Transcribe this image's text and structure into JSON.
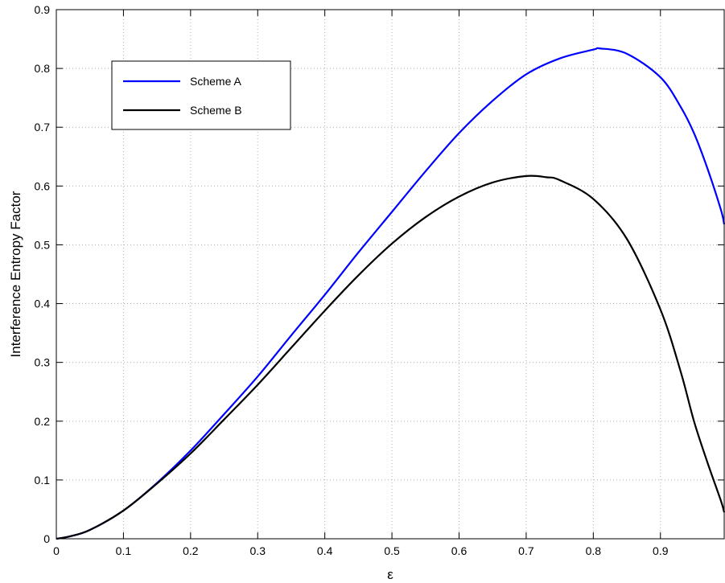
{
  "chart_data": {
    "type": "line",
    "title": "",
    "xlabel": "ε",
    "ylabel": "Interference Entropy Factor",
    "xlim": [
      0,
      0.995
    ],
    "ylim": [
      0,
      0.9
    ],
    "xticks": [
      "0",
      "0.1",
      "0.2",
      "0.3",
      "0.4",
      "0.5",
      "0.6",
      "0.7",
      "0.8",
      "0.9"
    ],
    "yticks": [
      "0",
      "0.1",
      "0.2",
      "0.3",
      "0.4",
      "0.5",
      "0.6",
      "0.7",
      "0.8",
      "0.9"
    ],
    "grid": true,
    "legend_position": "top-left",
    "series": [
      {
        "name": "Scheme A",
        "color": "#0000ff",
        "x": [
          0,
          0.02,
          0.05,
          0.1,
          0.15,
          0.2,
          0.25,
          0.3,
          0.35,
          0.4,
          0.45,
          0.5,
          0.55,
          0.6,
          0.65,
          0.7,
          0.75,
          0.8,
          0.81,
          0.85,
          0.9,
          0.93,
          0.95,
          0.97,
          0.99,
          0.995
        ],
        "y": [
          0,
          0.004,
          0.015,
          0.048,
          0.095,
          0.15,
          0.212,
          0.276,
          0.346,
          0.415,
          0.487,
          0.556,
          0.625,
          0.69,
          0.745,
          0.79,
          0.817,
          0.832,
          0.834,
          0.825,
          0.785,
          0.735,
          0.69,
          0.63,
          0.56,
          0.535
        ]
      },
      {
        "name": "Scheme B",
        "color": "#000000",
        "x": [
          0,
          0.02,
          0.05,
          0.1,
          0.15,
          0.2,
          0.25,
          0.3,
          0.35,
          0.4,
          0.45,
          0.5,
          0.55,
          0.6,
          0.65,
          0.7,
          0.73,
          0.75,
          0.8,
          0.85,
          0.9,
          0.93,
          0.95,
          0.97,
          0.99,
          0.995
        ],
        "y": [
          0,
          0.004,
          0.015,
          0.048,
          0.094,
          0.145,
          0.203,
          0.262,
          0.325,
          0.388,
          0.448,
          0.502,
          0.547,
          0.582,
          0.606,
          0.617,
          0.615,
          0.61,
          0.578,
          0.51,
          0.39,
          0.285,
          0.2,
          0.13,
          0.065,
          0.045
        ]
      }
    ]
  }
}
